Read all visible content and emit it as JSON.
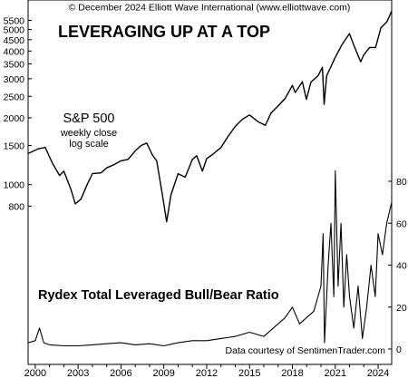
{
  "chart_data": [
    {
      "type": "line",
      "title": "LEVERAGING UP AT A TOP",
      "copyright": "© December 2024 Elliott Wave International (www.elliottwave.com)",
      "series_label": [
        "S&P 500",
        "weekly close",
        "log scale"
      ],
      "xlim": [
        1999.5,
        2024.95
      ],
      "x_ticks": [
        2000,
        2003,
        2006,
        2009,
        2012,
        2015,
        2018,
        2021,
        2024
      ],
      "x_tick_labels": [
        "2000",
        "2003",
        "2006",
        "2009",
        "2012",
        "2015",
        "2018",
        "2021",
        "2024"
      ],
      "y_scale": "log",
      "y_ticks": [
        800,
        1000,
        1500,
        2000,
        2500,
        3000,
        3500,
        4000,
        4500,
        5000,
        5500
      ],
      "y_tick_labels": [
        "800",
        "1000",
        "1500",
        "2000",
        "2500",
        "3000",
        "3500",
        "4000",
        "4500",
        "5000",
        "5500"
      ],
      "ylim": [
        600,
        6300
      ],
      "x": [
        1999.5,
        2000.2,
        2000.7,
        2001.2,
        2001.7,
        2002.0,
        2002.5,
        2002.8,
        2003.2,
        2003.6,
        2004.0,
        2004.6,
        2005.0,
        2005.5,
        2006.0,
        2006.5,
        2007.0,
        2007.4,
        2007.8,
        2008.2,
        2008.5,
        2008.9,
        2009.2,
        2009.5,
        2010.0,
        2010.5,
        2011.0,
        2011.3,
        2011.7,
        2012.0,
        2012.5,
        2013.0,
        2013.5,
        2014.0,
        2014.5,
        2015.0,
        2015.6,
        2016.1,
        2016.5,
        2017.0,
        2017.5,
        2018.0,
        2018.2,
        2018.7,
        2018.98,
        2019.3,
        2019.8,
        2020.1,
        2020.22,
        2020.4,
        2020.7,
        2021.0,
        2021.5,
        2021.99,
        2022.4,
        2022.78,
        2023.0,
        2023.4,
        2023.82,
        2024.2,
        2024.6,
        2024.95
      ],
      "values": [
        1380,
        1450,
        1470,
        1250,
        1100,
        1150,
        950,
        820,
        860,
        990,
        1120,
        1130,
        1190,
        1230,
        1280,
        1300,
        1420,
        1500,
        1540,
        1360,
        1280,
        900,
        680,
        900,
        1120,
        1080,
        1300,
        1350,
        1150,
        1310,
        1380,
        1470,
        1650,
        1830,
        1970,
        2060,
        1920,
        1850,
        2100,
        2260,
        2450,
        2800,
        2600,
        2910,
        2420,
        2900,
        3100,
        3380,
        2300,
        3100,
        3400,
        3750,
        4300,
        4790,
        4100,
        3580,
        3850,
        4150,
        4150,
        5100,
        5400,
        6050
      ]
    },
    {
      "type": "line",
      "title": "Rydex Total Leveraged Bull/Bear Ratio",
      "note": "Data courtesy of SentimenTrader.com",
      "xlim": [
        1999.5,
        2024.95
      ],
      "y_ticks": [
        0,
        20,
        40,
        60,
        80
      ],
      "y_tick_labels": [
        "0",
        "20",
        "40",
        "60",
        "80"
      ],
      "ylim": [
        0,
        80
      ],
      "axis_side": "right",
      "x": [
        1999.5,
        2000.0,
        2000.3,
        2000.6,
        2001.0,
        2002.0,
        2003.0,
        2004.0,
        2005.0,
        2006.0,
        2007.0,
        2008.0,
        2009.0,
        2010.0,
        2011.0,
        2012.0,
        2013.0,
        2014.0,
        2015.0,
        2016.0,
        2017.0,
        2017.5,
        2018.0,
        2018.5,
        2019.0,
        2019.5,
        2020.0,
        2020.15,
        2020.25,
        2020.5,
        2020.7,
        2020.9,
        2021.0,
        2021.2,
        2021.4,
        2021.6,
        2021.8,
        2022.0,
        2022.3,
        2022.6,
        2022.9,
        2023.2,
        2023.5,
        2023.8,
        2024.0,
        2024.3,
        2024.6,
        2024.95
      ],
      "values": [
        3,
        4,
        10,
        3,
        2,
        1.5,
        1.5,
        2,
        2.5,
        3,
        2,
        2.5,
        1.5,
        3,
        4,
        4,
        5,
        6,
        8,
        6,
        12,
        15,
        20,
        12,
        15,
        18,
        30,
        55,
        3,
        40,
        60,
        25,
        85,
        30,
        60,
        20,
        45,
        25,
        10,
        30,
        5,
        20,
        40,
        25,
        55,
        45,
        60,
        70
      ]
    }
  ]
}
